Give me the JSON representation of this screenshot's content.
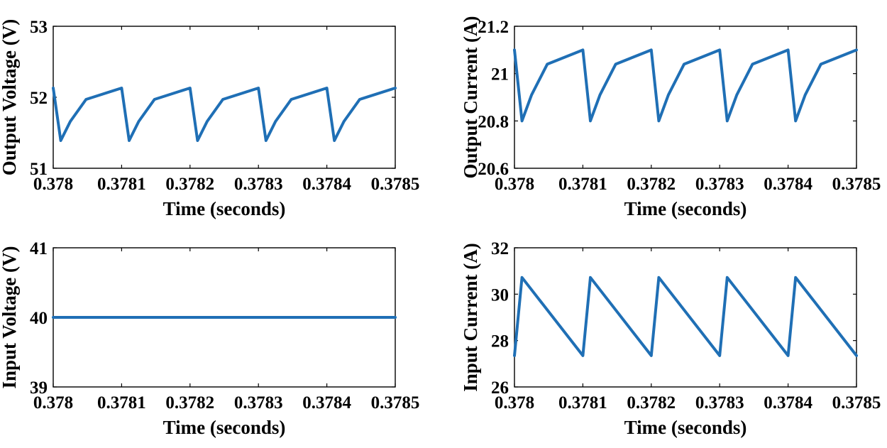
{
  "colors": {
    "series": "#1f6fb5",
    "axis": "#000000",
    "background": "#ffffff"
  },
  "chart_data": [
    {
      "id": "output-voltage",
      "type": "line",
      "title": "",
      "xlabel": "Time (seconds)",
      "ylabel": "Output Voltage (V)",
      "xlim": [
        0.378,
        0.3785
      ],
      "ylim": [
        51,
        53
      ],
      "xticks": [
        0.378,
        0.3781,
        0.3782,
        0.3783,
        0.3784,
        0.3785
      ],
      "xtick_labels": [
        "0.378",
        "0.3781",
        "0.3782",
        "0.3783",
        "0.3784",
        "0.3785"
      ],
      "yticks": [
        51,
        52,
        53
      ],
      "ytick_labels": [
        "51",
        "52",
        "53"
      ],
      "grid": false,
      "legend": "none",
      "series": [
        {
          "name": "Output Voltage",
          "x": [
            0.378,
            0.378011,
            0.378025,
            0.378048,
            0.3781,
            0.378111,
            0.378125,
            0.378148,
            0.3782,
            0.378211,
            0.378225,
            0.378248,
            0.3783,
            0.378311,
            0.378325,
            0.378348,
            0.3784,
            0.378411,
            0.378425,
            0.378448,
            0.3785
          ],
          "values": [
            52.13,
            51.39,
            51.66,
            51.97,
            52.13,
            51.39,
            51.66,
            51.97,
            52.13,
            51.39,
            51.66,
            51.97,
            52.13,
            51.39,
            51.66,
            51.97,
            52.13,
            51.39,
            51.66,
            51.97,
            52.13
          ]
        }
      ]
    },
    {
      "id": "output-current",
      "type": "line",
      "title": "",
      "xlabel": "Time (seconds)",
      "ylabel": "Output Current (A)",
      "xlim": [
        0.378,
        0.3785
      ],
      "ylim": [
        20.6,
        21.2
      ],
      "xticks": [
        0.378,
        0.3781,
        0.3782,
        0.3783,
        0.3784,
        0.3785
      ],
      "xtick_labels": [
        "0.378",
        "0.3781",
        "0.3782",
        "0.3783",
        "0.3784",
        "0.3785"
      ],
      "yticks": [
        20.6,
        20.8,
        21,
        21.2
      ],
      "ytick_labels": [
        "20.6",
        "20.8",
        "21",
        "21.2"
      ],
      "grid": false,
      "legend": "none",
      "series": [
        {
          "name": "Output Current",
          "x": [
            0.378,
            0.378011,
            0.378025,
            0.378048,
            0.3781,
            0.378111,
            0.378125,
            0.378148,
            0.3782,
            0.378211,
            0.378225,
            0.378248,
            0.3783,
            0.378311,
            0.378325,
            0.378348,
            0.3784,
            0.378411,
            0.378425,
            0.378448,
            0.3785
          ],
          "values": [
            21.1,
            20.8,
            20.91,
            21.04,
            21.1,
            20.8,
            20.91,
            21.04,
            21.1,
            20.8,
            20.91,
            21.04,
            21.1,
            20.8,
            20.91,
            21.04,
            21.1,
            20.8,
            20.91,
            21.04,
            21.1
          ]
        }
      ]
    },
    {
      "id": "input-voltage",
      "type": "line",
      "title": "",
      "xlabel": "Time (seconds)",
      "ylabel": "Input Voltage (V)",
      "xlim": [
        0.378,
        0.3785
      ],
      "ylim": [
        39,
        41
      ],
      "xticks": [
        0.378,
        0.3781,
        0.3782,
        0.3783,
        0.3784,
        0.3785
      ],
      "xtick_labels": [
        "0.378",
        "0.3781",
        "0.3782",
        "0.3783",
        "0.3784",
        "0.3785"
      ],
      "yticks": [
        39,
        40,
        41
      ],
      "ytick_labels": [
        "39",
        "40",
        "41"
      ],
      "grid": false,
      "legend": "none",
      "series": [
        {
          "name": "Input Voltage",
          "x": [
            0.378,
            0.3785
          ],
          "values": [
            40,
            40
          ]
        }
      ]
    },
    {
      "id": "input-current",
      "type": "line",
      "title": "",
      "xlabel": "Time (seconds)",
      "ylabel": "Input Current (A)",
      "xlim": [
        0.378,
        0.3785
      ],
      "ylim": [
        26,
        32
      ],
      "xticks": [
        0.378,
        0.3781,
        0.3782,
        0.3783,
        0.3784,
        0.3785
      ],
      "xtick_labels": [
        "0.378",
        "0.3781",
        "0.3782",
        "0.3783",
        "0.3784",
        "0.3785"
      ],
      "yticks": [
        26,
        28,
        30,
        32
      ],
      "ytick_labels": [
        "26",
        "28",
        "30",
        "32"
      ],
      "grid": false,
      "legend": "none",
      "series": [
        {
          "name": "Input Current",
          "x": [
            0.378,
            0.378011,
            0.3781,
            0.378111,
            0.3782,
            0.378211,
            0.3783,
            0.378311,
            0.3784,
            0.378411,
            0.3785
          ],
          "values": [
            27.35,
            30.72,
            27.35,
            30.72,
            27.35,
            30.72,
            27.35,
            30.72,
            27.35,
            30.72,
            27.35
          ]
        }
      ]
    }
  ]
}
